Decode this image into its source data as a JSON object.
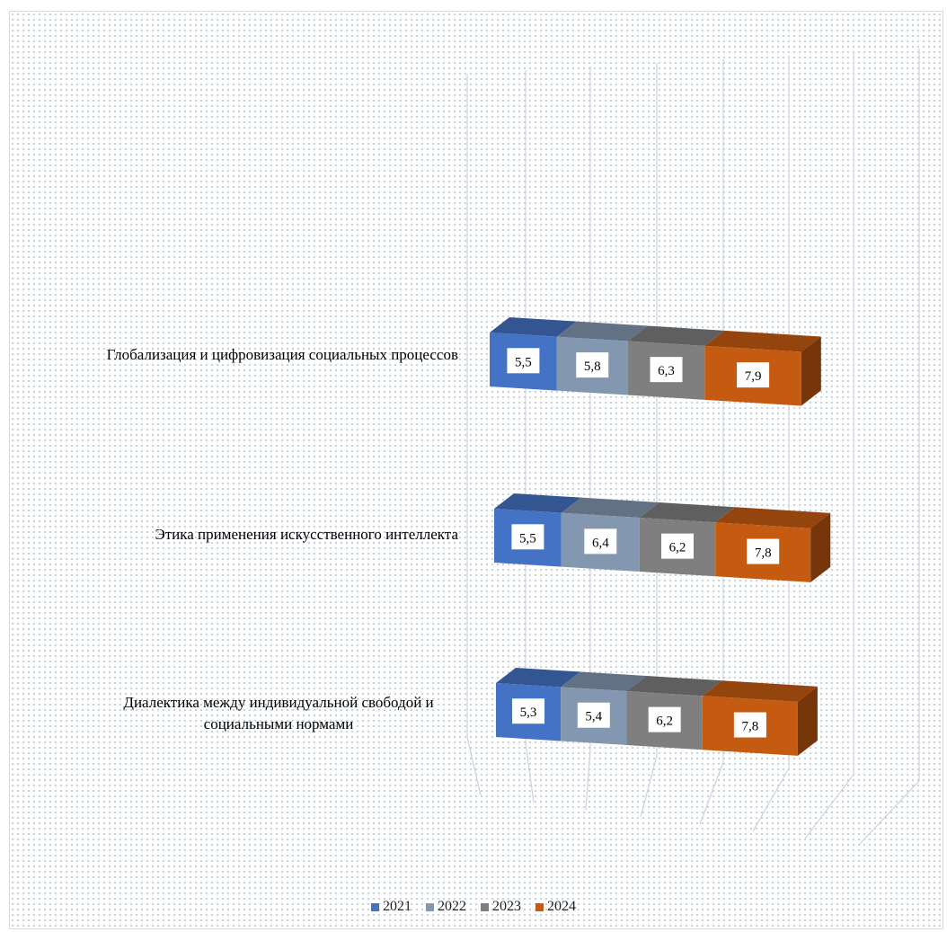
{
  "chart_data": {
    "type": "bar",
    "orientation": "horizontal-stacked-3d",
    "title": "",
    "xlabel": "",
    "ylabel": "",
    "categories": [
      "Глобализация и цифровизация социальных процессов",
      "Этика применения искусственного интеллекта",
      "Диалектика между индивидуальной свободой и социальными нормами"
    ],
    "series": [
      {
        "name": "2021",
        "color": "#4472c4",
        "values": [
          5.5,
          5.5,
          5.3
        ],
        "labels": [
          "5,5",
          "5,5",
          "5,3"
        ]
      },
      {
        "name": "2022",
        "color": "#8497b0",
        "values": [
          5.8,
          6.4,
          5.4
        ],
        "labels": [
          "5,8",
          "6,4",
          "5,4"
        ]
      },
      {
        "name": "2023",
        "color": "#7f7f7f",
        "values": [
          6.3,
          6.2,
          6.2
        ],
        "labels": [
          "6,3",
          "6,2",
          "6,2"
        ]
      },
      {
        "name": "2024",
        "color": "#c55a11",
        "values": [
          7.9,
          7.8,
          7.8
        ],
        "labels": [
          "7,9",
          "7,8",
          "7,8"
        ]
      }
    ],
    "gridlines": true,
    "legend_position": "bottom"
  },
  "legend": {
    "items": [
      {
        "label": "2021",
        "color": "#4472c4"
      },
      {
        "label": "2022",
        "color": "#8497b0"
      },
      {
        "label": "2023",
        "color": "#7f7f7f"
      },
      {
        "label": "2024",
        "color": "#c55a11"
      }
    ]
  }
}
